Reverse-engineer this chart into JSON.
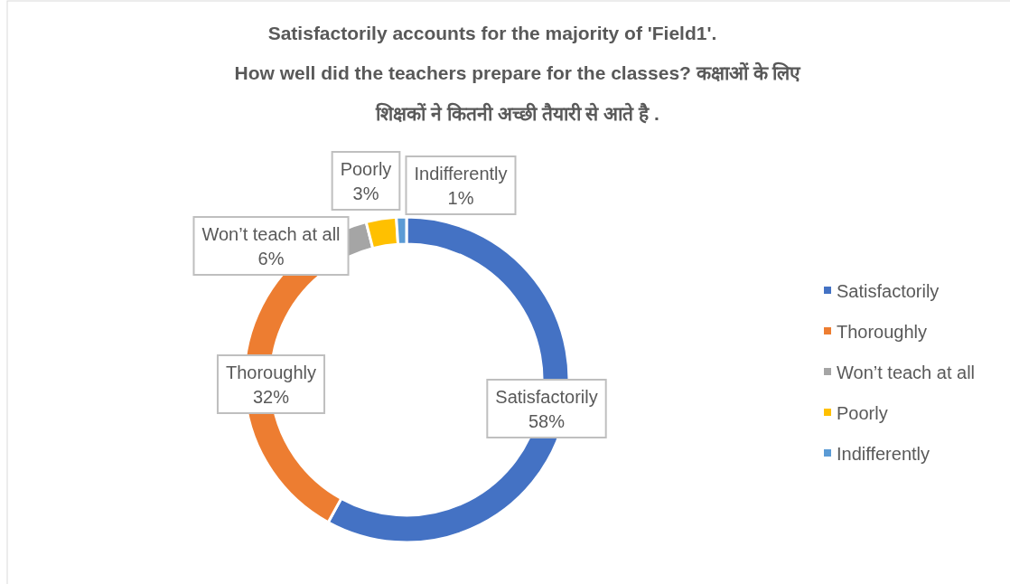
{
  "chart_data": {
    "type": "donut",
    "title": "Satisfactorily accounts for the majority of 'Field1'.",
    "subtitle": "How well did the teachers prepare for the classes? कक्षाओं के लिए शिक्षकों ने कितनी अच्छी तैयारी से आते है .",
    "categories": [
      "Satisfactorily",
      "Thoroughly",
      "Won’t teach at all",
      "Poorly",
      "Indifferently"
    ],
    "values": [
      58,
      32,
      6,
      3,
      1
    ],
    "value_labels": [
      "58%",
      "32%",
      "6%",
      "3%",
      "1%"
    ],
    "colors": [
      "#4472c4",
      "#ed7d31",
      "#a5a5a5",
      "#ffc000",
      "#5b9bd5"
    ],
    "legend": "right"
  }
}
